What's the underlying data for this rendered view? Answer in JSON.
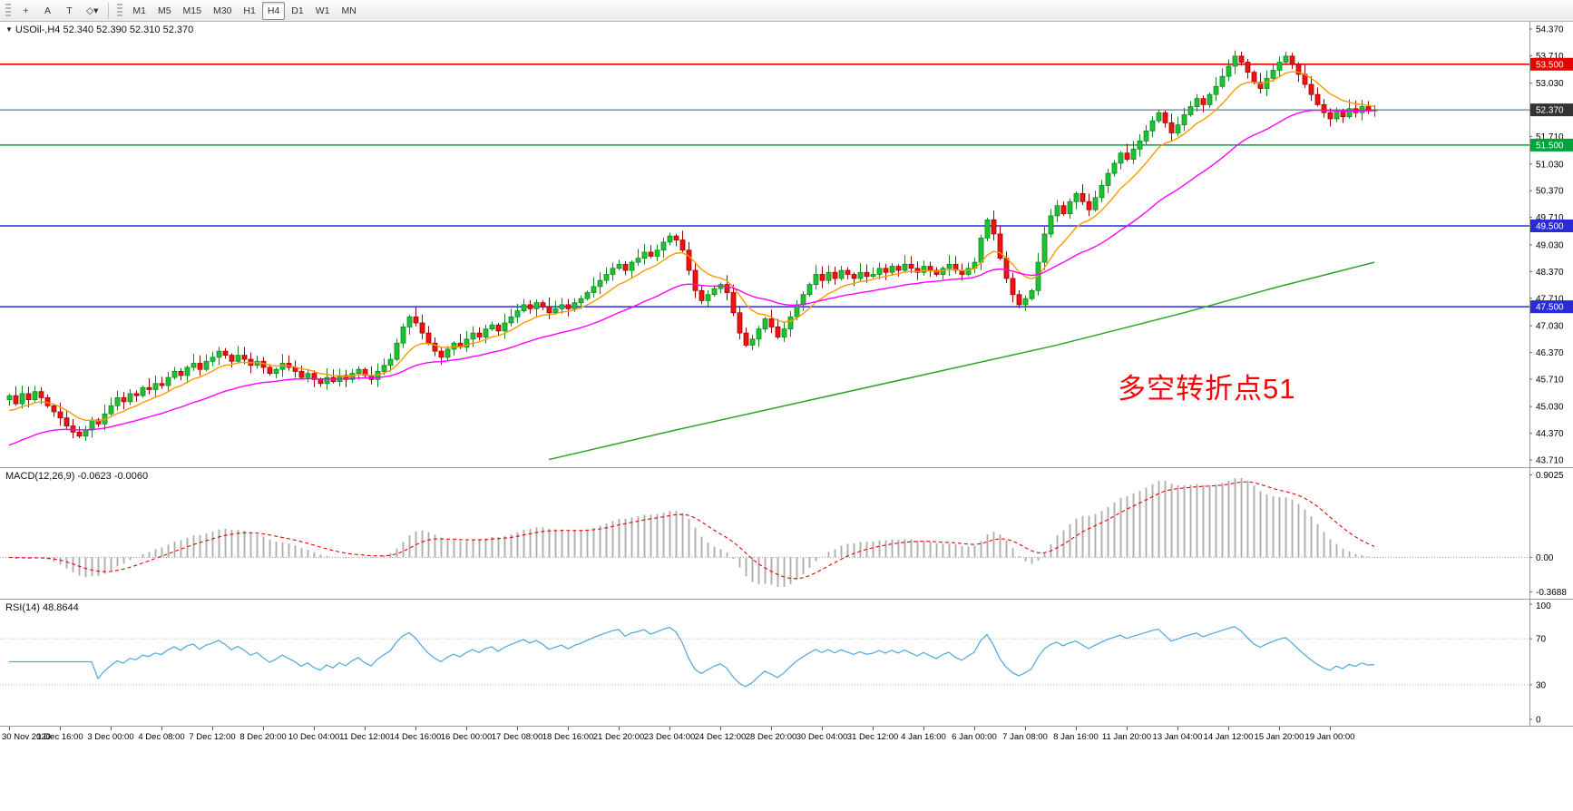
{
  "toolbar": {
    "tools": [
      {
        "name": "crosshair",
        "glyph": "+"
      },
      {
        "name": "text-annotation",
        "glyph": "A"
      },
      {
        "name": "text-label",
        "glyph": "T"
      },
      {
        "name": "shapes-dropdown",
        "glyph": "◇▾"
      }
    ],
    "timeframes": [
      "M1",
      "M5",
      "M15",
      "M30",
      "H1",
      "H4",
      "D1",
      "W1",
      "MN"
    ],
    "active_timeframe": "H4"
  },
  "main_chart": {
    "title_marker": "▼",
    "title": "USOil-,H4  52.340 52.390 52.310 52.370",
    "annotation": "多空转折点51",
    "annotation_color": "#f20505"
  },
  "chart_data": {
    "type": "candlestick",
    "symbol": "USOil-",
    "timeframe": "H4",
    "price_min": 43.71,
    "price_max": 54.37,
    "open_first": 45.2,
    "closes": [
      45.3,
      45.1,
      45.35,
      45.2,
      45.4,
      45.25,
      45.05,
      44.9,
      44.75,
      44.55,
      44.4,
      44.3,
      44.45,
      44.7,
      44.6,
      44.85,
      45.05,
      45.25,
      45.15,
      45.35,
      45.3,
      45.5,
      45.45,
      45.6,
      45.55,
      45.75,
      45.9,
      45.8,
      46.0,
      46.1,
      45.95,
      46.15,
      46.25,
      46.4,
      46.3,
      46.15,
      46.3,
      46.2,
      46.05,
      46.15,
      46.0,
      45.85,
      45.95,
      46.1,
      46.0,
      45.9,
      45.75,
      45.85,
      45.7,
      45.6,
      45.75,
      45.65,
      45.8,
      45.7,
      45.85,
      45.95,
      45.8,
      45.7,
      45.9,
      46.05,
      46.2,
      46.6,
      47.0,
      47.25,
      47.1,
      46.85,
      46.6,
      46.4,
      46.25,
      46.45,
      46.6,
      46.5,
      46.7,
      46.85,
      46.75,
      46.95,
      47.05,
      46.9,
      47.1,
      47.25,
      47.4,
      47.55,
      47.45,
      47.6,
      47.5,
      47.35,
      47.45,
      47.55,
      47.45,
      47.6,
      47.7,
      47.85,
      48.0,
      48.15,
      48.3,
      48.45,
      48.55,
      48.4,
      48.6,
      48.7,
      48.85,
      48.75,
      48.9,
      49.1,
      49.25,
      49.15,
      48.9,
      48.4,
      47.9,
      47.65,
      47.8,
      47.95,
      48.05,
      47.85,
      47.35,
      46.85,
      46.55,
      46.7,
      46.95,
      47.2,
      47.0,
      46.75,
      46.95,
      47.25,
      47.55,
      47.8,
      48.05,
      48.3,
      48.15,
      48.35,
      48.2,
      48.4,
      48.3,
      48.2,
      48.35,
      48.25,
      48.3,
      48.45,
      48.35,
      48.5,
      48.4,
      48.55,
      48.45,
      48.35,
      48.5,
      48.4,
      48.3,
      48.45,
      48.55,
      48.4,
      48.3,
      48.45,
      48.6,
      49.2,
      49.65,
      49.3,
      48.7,
      48.2,
      47.8,
      47.55,
      47.7,
      47.9,
      48.6,
      49.3,
      49.75,
      50.0,
      49.8,
      50.1,
      50.3,
      50.1,
      49.9,
      50.2,
      50.5,
      50.8,
      51.05,
      51.3,
      51.15,
      51.4,
      51.6,
      51.85,
      52.1,
      52.3,
      52.05,
      51.8,
      52.0,
      52.25,
      52.45,
      52.65,
      52.5,
      52.75,
      52.95,
      53.2,
      53.45,
      53.7,
      53.55,
      53.3,
      53.05,
      52.9,
      53.15,
      53.35,
      53.55,
      53.7,
      53.5,
      53.25,
      53.0,
      52.75,
      52.5,
      52.3,
      52.15,
      52.35,
      52.2,
      52.4,
      52.3,
      52.45,
      52.35,
      52.37
    ],
    "price_axis_ticks": [
      "54.370",
      "53.710",
      "53.030",
      "52.370",
      "51.710",
      "51.030",
      "50.370",
      "49.710",
      "49.030",
      "48.370",
      "47.710",
      "47.030",
      "46.370",
      "45.710",
      "45.030",
      "44.370",
      "43.710"
    ],
    "hlines": [
      {
        "price": 53.5,
        "color": "#e60000",
        "label": "53.500",
        "label_bg": "#e60000"
      },
      {
        "price": 51.5,
        "color": "#00a23c",
        "label": "51.500",
        "label_bg": "#00a23c"
      },
      {
        "price": 49.5,
        "color": "#2a2ad6",
        "label": "49.500",
        "label_bg": "#2a2ad6"
      },
      {
        "price": 47.5,
        "color": "#2a2ad6",
        "label": "47.500",
        "label_bg": "#2a2ad6"
      }
    ],
    "current_price": {
      "value": 52.37,
      "label": "52.370",
      "line_color": "#5c7f99",
      "label_bg": "#333333"
    },
    "ma": [
      {
        "name": "ma-fast",
        "color": "#ff9900",
        "period": 10,
        "seed_offset": -0.45
      },
      {
        "name": "ma-medium",
        "color": "#ff00ff",
        "period": 34,
        "seed_offset": -1.3
      }
    ],
    "ma_slow": {
      "name": "ma-slow",
      "color": "#2aa52a",
      "points_bar_price": [
        [
          85,
          43.72
        ],
        [
          105,
          44.45
        ],
        [
          125,
          45.15
        ],
        [
          145,
          45.85
        ],
        [
          165,
          46.55
        ],
        [
          185,
          47.35
        ],
        [
          200,
          48.0
        ],
        [
          215,
          48.6
        ]
      ]
    },
    "time_labels": [
      "30 Nov 2020",
      "1 Dec 16:00",
      "3 Dec 00:00",
      "4 Dec 08:00",
      "7 Dec 12:00",
      "8 Dec 20:00",
      "10 Dec 04:00",
      "11 Dec 12:00",
      "14 Dec 16:00",
      "16 Dec 00:00",
      "17 Dec 08:00",
      "18 Dec 16:00",
      "21 Dec 20:00",
      "23 Dec 04:00",
      "24 Dec 12:00",
      "28 Dec 20:00",
      "30 Dec 04:00",
      "31 Dec 12:00",
      "4 Jan 16:00",
      "6 Jan 00:00",
      "7 Jan 08:00",
      "8 Jan 16:00",
      "11 Jan 20:00",
      "13 Jan 04:00",
      "14 Jan 12:00",
      "15 Jan 20:00",
      "19 Jan 00:00"
    ],
    "label_every_bars": 8,
    "macd": {
      "title": "MACD(12,26,9) -0.0623 -0.0060",
      "fast": 12,
      "slow": 26,
      "signal": 9,
      "axis_labels": [
        "0.9025",
        "0.00",
        "-0.3688"
      ],
      "hist_color": "#ababab",
      "signal_color": "#e60000"
    },
    "rsi": {
      "title": "RSI(14) 48.8644",
      "period": 14,
      "levels": [
        30,
        70
      ],
      "axis_labels": [
        "100",
        "70",
        "30",
        "0"
      ],
      "line_color": "#4da6dd"
    }
  }
}
